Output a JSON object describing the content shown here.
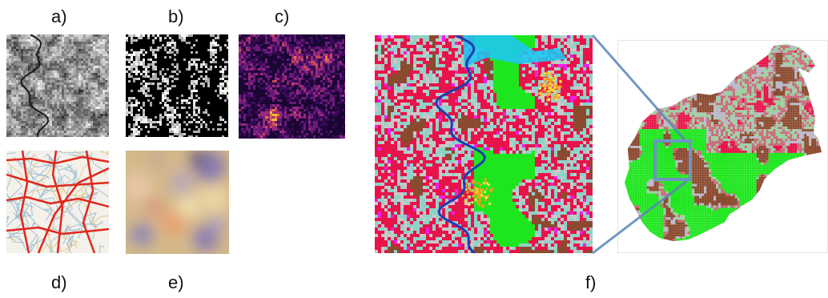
{
  "panels": {
    "a": {
      "label": "a)"
    },
    "b": {
      "label": "b)"
    },
    "c": {
      "label": "c)"
    },
    "d": {
      "label": "d)"
    },
    "e": {
      "label": "e)"
    },
    "f": {
      "label": "f)"
    }
  },
  "colors": {
    "connector": "#5b86b8",
    "roads": "#e0281e",
    "river": "#1e3cb4",
    "urban": "#e8134a",
    "forest": "#1ee61e",
    "agri": "#8b4a2f",
    "grass": "#8fd2c8",
    "magenta": "#f01ee6",
    "cyan": "#1ec8f0",
    "orange": "#f0a01e"
  }
}
